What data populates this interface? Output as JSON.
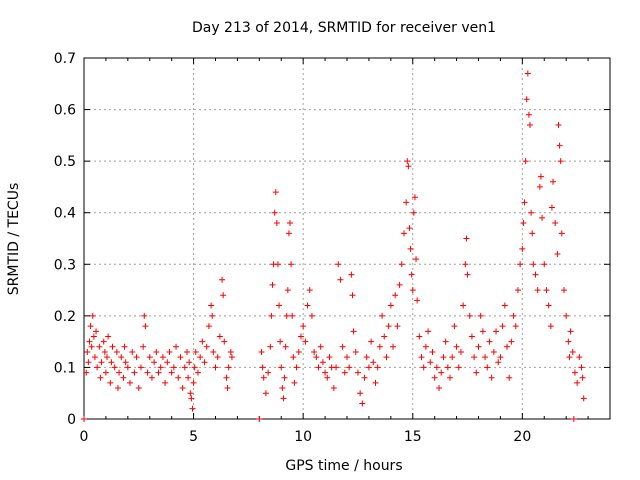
{
  "chart_data": {
    "type": "scatter",
    "title": "Day 213 of 2014, SRMTID for receiver ven1",
    "xlabel": "GPS time / hours",
    "ylabel": "SRMTID / TECUs",
    "xlim": [
      0,
      24
    ],
    "ylim": [
      0,
      0.7
    ],
    "xticks": [
      0,
      5,
      10,
      15,
      20
    ],
    "yticks": [
      0,
      0.1,
      0.2,
      0.3,
      0.4,
      0.5,
      0.6,
      0.7
    ],
    "xtick_labels": [
      "0",
      "5",
      "10",
      "15",
      "20"
    ],
    "ytick_labels": [
      "0",
      "0.1",
      "0.2",
      "0.3",
      "0.4",
      "0.5",
      "0.6",
      "0.7"
    ],
    "grid": true,
    "marker": "+",
    "color": "#ff0000",
    "series": [
      {
        "name": "ven1",
        "points": [
          [
            0.0,
            0.0
          ],
          [
            0.1,
            0.09
          ],
          [
            0.15,
            0.13
          ],
          [
            0.2,
            0.11
          ],
          [
            0.25,
            0.15
          ],
          [
            0.3,
            0.18
          ],
          [
            0.35,
            0.14
          ],
          [
            0.4,
            0.2
          ],
          [
            0.45,
            0.16
          ],
          [
            0.5,
            0.12
          ],
          [
            0.55,
            0.17
          ],
          [
            0.6,
            0.1
          ],
          [
            0.7,
            0.14
          ],
          [
            0.75,
            0.08
          ],
          [
            0.8,
            0.11
          ],
          [
            0.9,
            0.15
          ],
          [
            0.95,
            0.13
          ],
          [
            1.0,
            0.09
          ],
          [
            1.05,
            0.12
          ],
          [
            1.1,
            0.16
          ],
          [
            1.2,
            0.07
          ],
          [
            1.25,
            0.11
          ],
          [
            1.3,
            0.14
          ],
          [
            1.4,
            0.1
          ],
          [
            1.5,
            0.13
          ],
          [
            1.55,
            0.06
          ],
          [
            1.6,
            0.09
          ],
          [
            1.7,
            0.12
          ],
          [
            1.8,
            0.08
          ],
          [
            1.85,
            0.14
          ],
          [
            1.9,
            0.11
          ],
          [
            2.0,
            0.1
          ],
          [
            2.1,
            0.07
          ],
          [
            2.2,
            0.13
          ],
          [
            2.3,
            0.09
          ],
          [
            2.4,
            0.12
          ],
          [
            2.5,
            0.06
          ],
          [
            2.6,
            0.1
          ],
          [
            2.7,
            0.14
          ],
          [
            2.75,
            0.2
          ],
          [
            2.8,
            0.18
          ],
          [
            2.9,
            0.09
          ],
          [
            3.0,
            0.12
          ],
          [
            3.1,
            0.08
          ],
          [
            3.2,
            0.11
          ],
          [
            3.3,
            0.13
          ],
          [
            3.4,
            0.09
          ],
          [
            3.5,
            0.1
          ],
          [
            3.6,
            0.12
          ],
          [
            3.7,
            0.07
          ],
          [
            3.8,
            0.11
          ],
          [
            3.9,
            0.13
          ],
          [
            4.0,
            0.09
          ],
          [
            4.1,
            0.1
          ],
          [
            4.2,
            0.14
          ],
          [
            4.3,
            0.08
          ],
          [
            4.4,
            0.12
          ],
          [
            4.5,
            0.06
          ],
          [
            4.6,
            0.1
          ],
          [
            4.7,
            0.13
          ],
          [
            4.75,
            0.08
          ],
          [
            4.8,
            0.11
          ],
          [
            4.85,
            0.05
          ],
          [
            4.9,
            0.04
          ],
          [
            4.95,
            0.02
          ],
          [
            5.0,
            0.07
          ],
          [
            5.05,
            0.1
          ],
          [
            5.1,
            0.13
          ],
          [
            5.2,
            0.09
          ],
          [
            5.3,
            0.12
          ],
          [
            5.4,
            0.15
          ],
          [
            5.5,
            0.11
          ],
          [
            5.6,
            0.14
          ],
          [
            5.7,
            0.18
          ],
          [
            5.8,
            0.22
          ],
          [
            5.85,
            0.2
          ],
          [
            5.9,
            0.13
          ],
          [
            6.0,
            0.1
          ],
          [
            6.1,
            0.12
          ],
          [
            6.2,
            0.16
          ],
          [
            6.3,
            0.27
          ],
          [
            6.35,
            0.24
          ],
          [
            6.4,
            0.15
          ],
          [
            6.5,
            0.08
          ],
          [
            6.55,
            0.06
          ],
          [
            6.6,
            0.1
          ],
          [
            6.7,
            0.13
          ],
          [
            6.75,
            0.12
          ],
          [
            8.0,
            0.0
          ],
          [
            8.1,
            0.13
          ],
          [
            8.15,
            0.1
          ],
          [
            8.2,
            0.08
          ],
          [
            8.3,
            0.05
          ],
          [
            8.4,
            0.09
          ],
          [
            8.5,
            0.14
          ],
          [
            8.55,
            0.2
          ],
          [
            8.6,
            0.26
          ],
          [
            8.65,
            0.3
          ],
          [
            8.7,
            0.4
          ],
          [
            8.75,
            0.44
          ],
          [
            8.8,
            0.38
          ],
          [
            8.85,
            0.3
          ],
          [
            8.9,
            0.22
          ],
          [
            8.95,
            0.15
          ],
          [
            9.0,
            0.1
          ],
          [
            9.05,
            0.06
          ],
          [
            9.1,
            0.04
          ],
          [
            9.15,
            0.08
          ],
          [
            9.2,
            0.14
          ],
          [
            9.25,
            0.2
          ],
          [
            9.3,
            0.25
          ],
          [
            9.35,
            0.36
          ],
          [
            9.4,
            0.38
          ],
          [
            9.45,
            0.3
          ],
          [
            9.5,
            0.2
          ],
          [
            9.55,
            0.12
          ],
          [
            9.6,
            0.07
          ],
          [
            9.7,
            0.1
          ],
          [
            9.8,
            0.13
          ],
          [
            9.9,
            0.16
          ],
          [
            10.0,
            0.18
          ],
          [
            10.1,
            0.15
          ],
          [
            10.2,
            0.22
          ],
          [
            10.3,
            0.25
          ],
          [
            10.4,
            0.2
          ],
          [
            10.5,
            0.13
          ],
          [
            10.6,
            0.12
          ],
          [
            10.7,
            0.1
          ],
          [
            10.8,
            0.14
          ],
          [
            10.9,
            0.11
          ],
          [
            11.0,
            0.09
          ],
          [
            11.1,
            0.08
          ],
          [
            11.2,
            0.12
          ],
          [
            11.3,
            0.1
          ],
          [
            11.4,
            0.06
          ],
          [
            11.5,
            0.1
          ],
          [
            11.6,
            0.3
          ],
          [
            11.7,
            0.27
          ],
          [
            11.8,
            0.14
          ],
          [
            11.9,
            0.09
          ],
          [
            12.0,
            0.12
          ],
          [
            12.1,
            0.1
          ],
          [
            12.2,
            0.28
          ],
          [
            12.25,
            0.24
          ],
          [
            12.3,
            0.17
          ],
          [
            12.4,
            0.13
          ],
          [
            12.5,
            0.09
          ],
          [
            12.6,
            0.05
          ],
          [
            12.7,
            0.03
          ],
          [
            12.8,
            0.08
          ],
          [
            12.9,
            0.12
          ],
          [
            13.0,
            0.1
          ],
          [
            13.1,
            0.15
          ],
          [
            13.2,
            0.11
          ],
          [
            13.3,
            0.07
          ],
          [
            13.4,
            0.1
          ],
          [
            13.5,
            0.14
          ],
          [
            13.6,
            0.2
          ],
          [
            13.7,
            0.16
          ],
          [
            13.8,
            0.12
          ],
          [
            13.9,
            0.18
          ],
          [
            14.0,
            0.22
          ],
          [
            14.1,
            0.14
          ],
          [
            14.2,
            0.24
          ],
          [
            14.3,
            0.18
          ],
          [
            14.4,
            0.26
          ],
          [
            14.5,
            0.3
          ],
          [
            14.6,
            0.36
          ],
          [
            14.7,
            0.42
          ],
          [
            14.75,
            0.5
          ],
          [
            14.8,
            0.49
          ],
          [
            14.85,
            0.37
          ],
          [
            14.9,
            0.33
          ],
          [
            14.95,
            0.28
          ],
          [
            15.0,
            0.25
          ],
          [
            15.05,
            0.4
          ],
          [
            15.1,
            0.43
          ],
          [
            15.15,
            0.31
          ],
          [
            15.2,
            0.23
          ],
          [
            15.3,
            0.16
          ],
          [
            15.4,
            0.12
          ],
          [
            15.5,
            0.1
          ],
          [
            15.6,
            0.14
          ],
          [
            15.7,
            0.17
          ],
          [
            15.8,
            0.11
          ],
          [
            15.9,
            0.13
          ],
          [
            16.0,
            0.08
          ],
          [
            16.1,
            0.1
          ],
          [
            16.2,
            0.06
          ],
          [
            16.3,
            0.09
          ],
          [
            16.4,
            0.12
          ],
          [
            16.5,
            0.15
          ],
          [
            16.6,
            0.1
          ],
          [
            16.7,
            0.08
          ],
          [
            16.8,
            0.12
          ],
          [
            16.9,
            0.18
          ],
          [
            17.0,
            0.14
          ],
          [
            17.1,
            0.1
          ],
          [
            17.2,
            0.13
          ],
          [
            17.3,
            0.22
          ],
          [
            17.4,
            0.3
          ],
          [
            17.45,
            0.35
          ],
          [
            17.5,
            0.28
          ],
          [
            17.6,
            0.2
          ],
          [
            17.7,
            0.16
          ],
          [
            17.8,
            0.12
          ],
          [
            17.9,
            0.09
          ],
          [
            18.0,
            0.14
          ],
          [
            18.1,
            0.2
          ],
          [
            18.2,
            0.17
          ],
          [
            18.3,
            0.12
          ],
          [
            18.4,
            0.1
          ],
          [
            18.5,
            0.15
          ],
          [
            18.6,
            0.08
          ],
          [
            18.7,
            0.13
          ],
          [
            18.8,
            0.17
          ],
          [
            18.9,
            0.11
          ],
          [
            19.0,
            0.12
          ],
          [
            19.1,
            0.18
          ],
          [
            19.2,
            0.22
          ],
          [
            19.3,
            0.14
          ],
          [
            19.4,
            0.08
          ],
          [
            19.5,
            0.15
          ],
          [
            19.6,
            0.2
          ],
          [
            19.7,
            0.18
          ],
          [
            19.8,
            0.25
          ],
          [
            19.9,
            0.3
          ],
          [
            20.0,
            0.33
          ],
          [
            20.05,
            0.38
          ],
          [
            20.1,
            0.42
          ],
          [
            20.15,
            0.5
          ],
          [
            20.2,
            0.62
          ],
          [
            20.25,
            0.67
          ],
          [
            20.3,
            0.59
          ],
          [
            20.35,
            0.57
          ],
          [
            20.4,
            0.4
          ],
          [
            20.45,
            0.36
          ],
          [
            20.5,
            0.3
          ],
          [
            20.6,
            0.28
          ],
          [
            20.7,
            0.25
          ],
          [
            20.8,
            0.45
          ],
          [
            20.85,
            0.47
          ],
          [
            20.9,
            0.39
          ],
          [
            21.0,
            0.3
          ],
          [
            21.1,
            0.25
          ],
          [
            21.2,
            0.22
          ],
          [
            21.3,
            0.18
          ],
          [
            21.35,
            0.41
          ],
          [
            21.4,
            0.46
          ],
          [
            21.5,
            0.38
          ],
          [
            21.6,
            0.32
          ],
          [
            21.65,
            0.57
          ],
          [
            21.7,
            0.53
          ],
          [
            21.75,
            0.5
          ],
          [
            21.8,
            0.36
          ],
          [
            21.9,
            0.25
          ],
          [
            22.0,
            0.2
          ],
          [
            22.1,
            0.15
          ],
          [
            22.15,
            0.12
          ],
          [
            22.2,
            0.17
          ],
          [
            22.3,
            0.13
          ],
          [
            22.35,
            0.0
          ],
          [
            22.4,
            0.09
          ],
          [
            22.5,
            0.07
          ],
          [
            22.6,
            0.12
          ],
          [
            22.7,
            0.1
          ],
          [
            22.75,
            0.08
          ],
          [
            22.8,
            0.04
          ]
        ]
      }
    ]
  }
}
